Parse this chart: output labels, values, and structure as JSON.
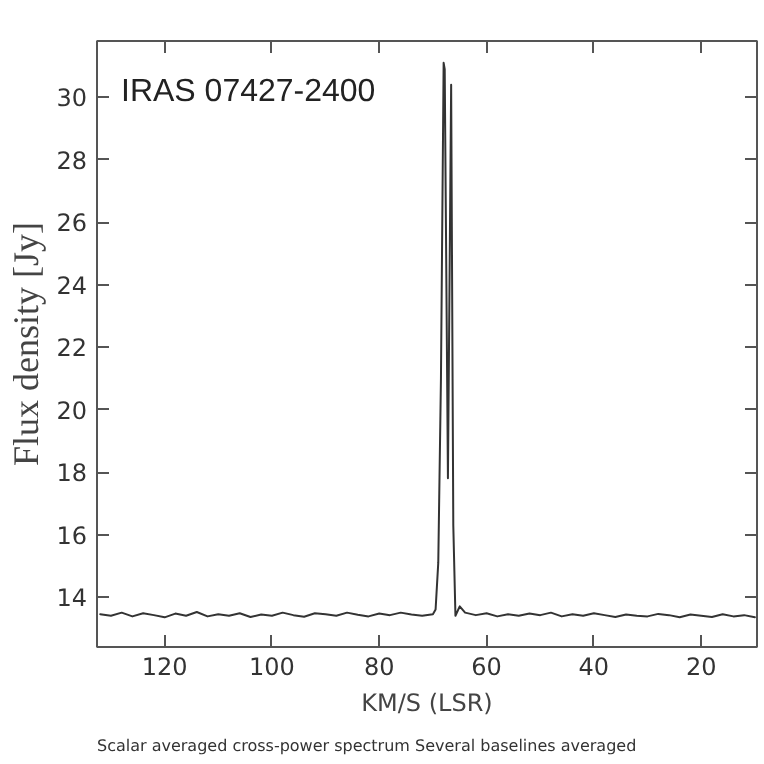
{
  "chart_data": {
    "type": "line",
    "title": "IRAS 07427-2400",
    "xlabel": "KM/S (LSR)",
    "ylabel": "Flux density [Jy]",
    "annotations": [
      "Scalar averaged cross-power spectrum    Several baselines averaged"
    ],
    "x": [
      132,
      130,
      128,
      126,
      124,
      122,
      120,
      118,
      116,
      114,
      112,
      110,
      108,
      106,
      104,
      102,
      100,
      98,
      96,
      94,
      92,
      90,
      88,
      86,
      84,
      82,
      80,
      78,
      76,
      74,
      72,
      70,
      69.5,
      69,
      68.5,
      68,
      67.8,
      67.2,
      66.6,
      66.2,
      65.8,
      65,
      64,
      62,
      60,
      58,
      56,
      54,
      52,
      50,
      48,
      46,
      44,
      42,
      40,
      38,
      36,
      34,
      32,
      30,
      28,
      26,
      24,
      22,
      20,
      18,
      16,
      14,
      12,
      10
    ],
    "series": [
      {
        "color": "#333333",
        "values": [
          13.45,
          13.4,
          13.5,
          13.38,
          13.48,
          13.42,
          13.35,
          13.47,
          13.4,
          13.52,
          13.38,
          13.45,
          13.4,
          13.48,
          13.36,
          13.44,
          13.4,
          13.5,
          13.42,
          13.37,
          13.48,
          13.45,
          13.4,
          13.5,
          13.43,
          13.38,
          13.47,
          13.42,
          13.5,
          13.44,
          13.4,
          13.45,
          13.6,
          15.1,
          21.0,
          31.1,
          30.9,
          17.8,
          30.4,
          16.3,
          13.4,
          13.7,
          13.5,
          13.42,
          13.48,
          13.38,
          13.45,
          13.4,
          13.47,
          13.42,
          13.5,
          13.38,
          13.45,
          13.4,
          13.48,
          13.42,
          13.36,
          13.44,
          13.4,
          13.38,
          13.46,
          13.42,
          13.35,
          13.44,
          13.4,
          13.36,
          13.45,
          13.38,
          13.42,
          13.35
        ]
      }
    ],
    "xlim": [
      132.6,
      9.6
    ],
    "ylim": [
      12.4,
      31.8
    ],
    "xticks": [
      120,
      100,
      80,
      60,
      40,
      20
    ],
    "yticks": [
      14,
      16,
      18,
      20,
      22,
      24,
      26,
      28,
      30
    ],
    "grid": false
  }
}
